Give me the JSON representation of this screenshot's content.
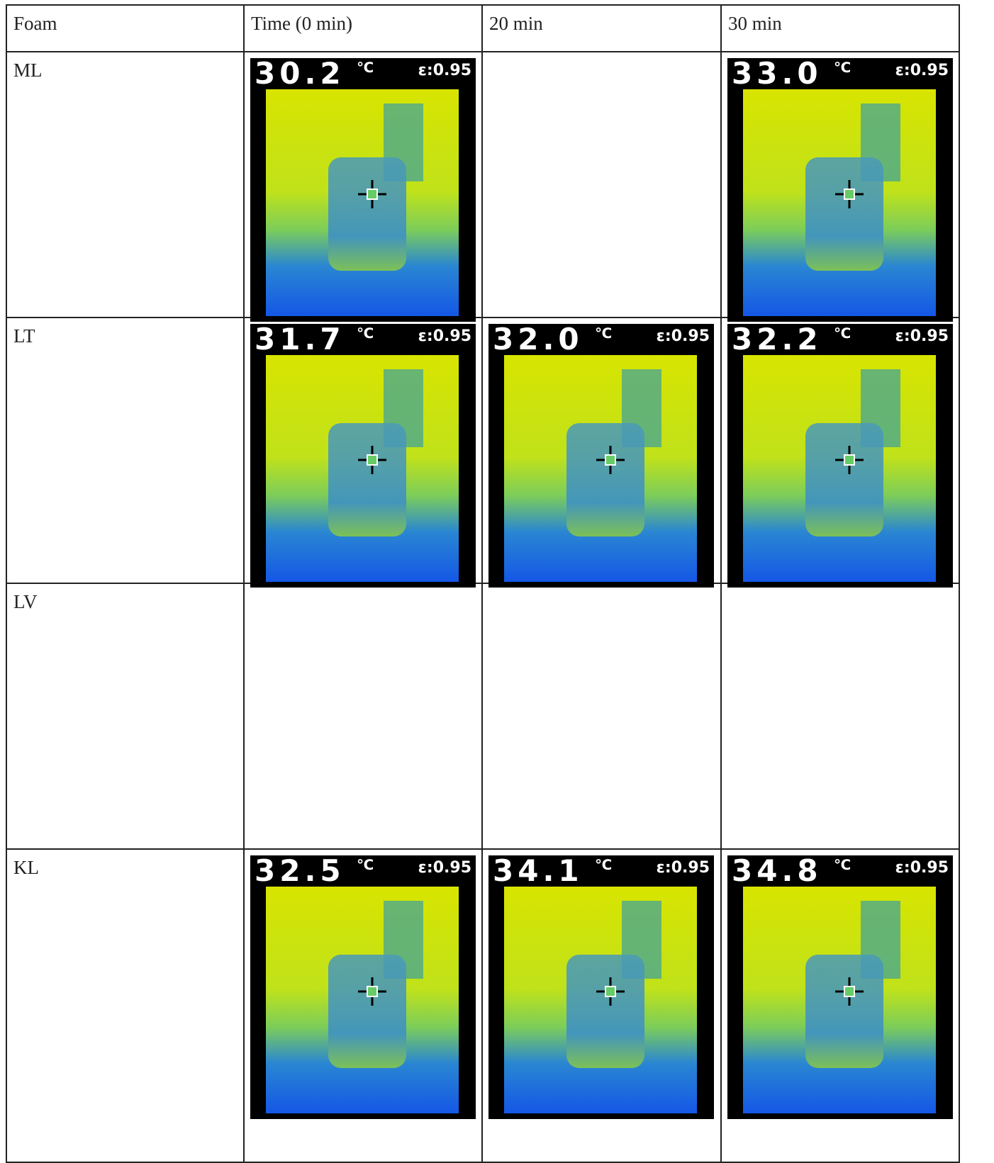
{
  "table": {
    "header": [
      "Foam",
      "Time (0 min)",
      "20 min",
      "30 min"
    ],
    "rows": [
      {
        "label": "ML",
        "images": [
          {
            "temp": "30.2",
            "unit": "℃",
            "emissivity": "ε:0.95"
          },
          null,
          {
            "temp": "33.0",
            "unit": "℃",
            "emissivity": "ε:0.95"
          }
        ]
      },
      {
        "label": "LT",
        "images": [
          {
            "temp": "31.7",
            "unit": "℃",
            "emissivity": "ε:0.95"
          },
          {
            "temp": "32.0",
            "unit": "℃",
            "emissivity": "ε:0.95"
          },
          {
            "temp": "32.2",
            "unit": "℃",
            "emissivity": "ε:0.95"
          }
        ]
      },
      {
        "label": "LV",
        "images": [
          null,
          null,
          null
        ]
      },
      {
        "label": "KL",
        "images": [
          {
            "temp": "32.5",
            "unit": "℃",
            "emissivity": "ε:0.95"
          },
          {
            "temp": "34.1",
            "unit": "℃",
            "emissivity": "ε:0.95"
          },
          {
            "temp": "34.8",
            "unit": "℃",
            "emissivity": "ε:0.95"
          }
        ]
      }
    ]
  }
}
